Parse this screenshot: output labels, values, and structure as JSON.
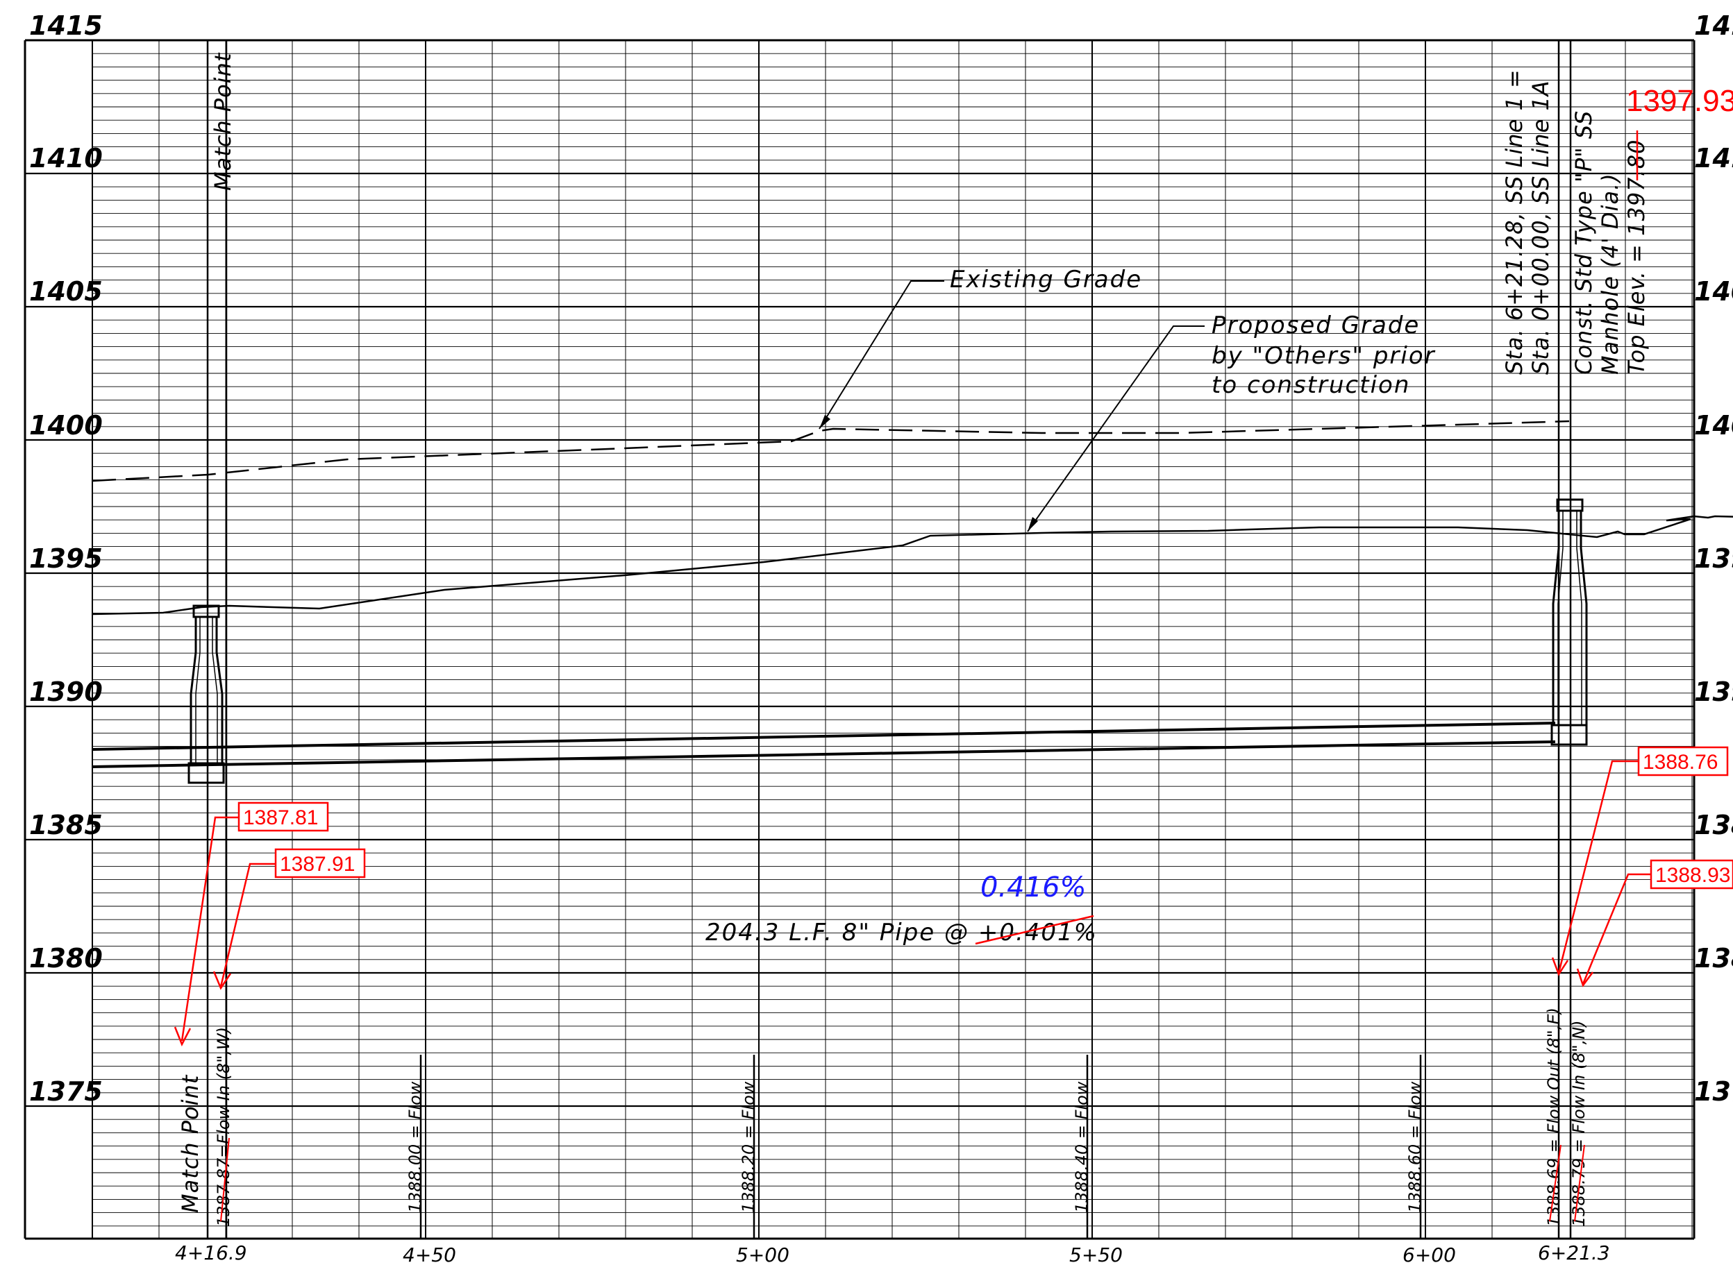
{
  "elevation_labels": [
    "1415",
    "1410",
    "1405",
    "1400",
    "1395",
    "1390",
    "1385",
    "1380",
    "1375"
  ],
  "right_elevation_labels": [
    "141",
    "141",
    "140",
    "140",
    "139",
    "139",
    "138",
    "138",
    "137"
  ],
  "station_labels": [
    "4+16.9",
    "4+50",
    "5+00",
    "5+50",
    "6+00",
    "6+21.3"
  ],
  "match_point_top": "Match Point",
  "match_point_bottom": "Match Point",
  "existing_grade_label": "Existing Grade",
  "proposed_grade_label": [
    "Proposed Grade",
    "by \"Others\" prior",
    "to construction"
  ],
  "manhole_station": [
    "Sta. 6+21.28, SS Line 1 =",
    "Sta. 0+00.00, SS Line 1A"
  ],
  "manhole_desc": [
    "Const. Std Type \"P\" SS",
    "Manhole (4' Dia.)",
    "Top Elev. = 1397.80"
  ],
  "pipe_label": "204.3 L.F. 8\" Pipe @ +0.401%",
  "revised_slope": "0.416%",
  "flow_left": "1387.87=Flow In (8\",W)",
  "flow_marks": [
    "1388.00 = Flow",
    "1388.20 = Flow",
    "1388.40 = Flow",
    "1388.60 = Flow"
  ],
  "flow_out_right": "1388.69 = Flow Out (8\",E)",
  "flow_in_right": "1388.79 = Flow In (8\",N)",
  "red_callouts": {
    "top_elev": "1397.93",
    "left_a": "1387.81",
    "left_b": "1387.91",
    "right_a": "1388.76",
    "right_b": "1388.93"
  },
  "colors": {
    "markup_red": "#ff0000",
    "markup_blue": "#1a1aff",
    "linework": "#000000"
  }
}
